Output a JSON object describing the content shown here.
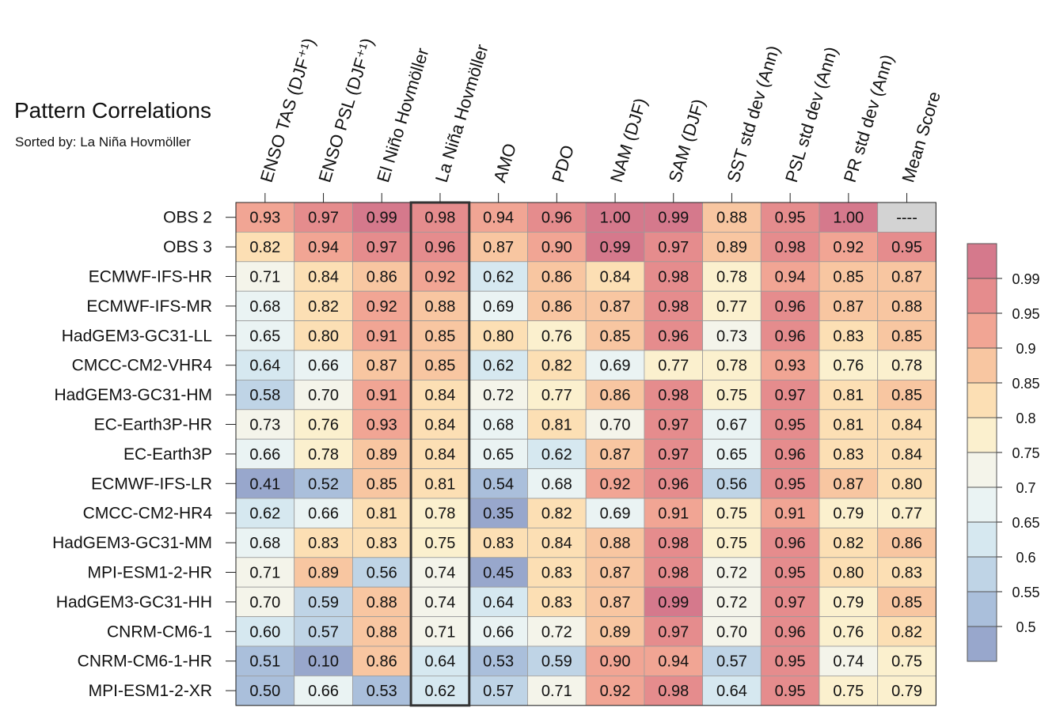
{
  "chart_data": {
    "type": "heatmap",
    "title": "Pattern Correlations",
    "subtitle": "Sorted by: La Niña Hovmöller",
    "columns": [
      "ENSO TAS (DJF⁺¹)",
      "ENSO PSL (DJF⁺¹)",
      "El Niño Hovmöller",
      "La Niña Hovmöller",
      "AMO",
      "PDO",
      "NAM (DJF)",
      "SAM (DJF)",
      "SST std dev (Ann)",
      "PSL std dev (Ann)",
      "PR std dev (Ann)",
      "Mean Score"
    ],
    "highlighted_column": "La Niña Hovmöller",
    "rows": [
      {
        "name": "OBS 2",
        "values": [
          0.93,
          0.97,
          0.99,
          0.98,
          0.94,
          0.96,
          1.0,
          0.99,
          0.88,
          0.95,
          1.0,
          null
        ]
      },
      {
        "name": "OBS 3",
        "values": [
          0.82,
          0.94,
          0.97,
          0.96,
          0.87,
          0.9,
          0.99,
          0.97,
          0.89,
          0.98,
          0.92,
          0.95
        ]
      },
      {
        "name": "ECMWF-IFS-HR",
        "values": [
          0.71,
          0.84,
          0.86,
          0.92,
          0.62,
          0.86,
          0.84,
          0.98,
          0.78,
          0.94,
          0.85,
          0.87
        ]
      },
      {
        "name": "ECMWF-IFS-MR",
        "values": [
          0.68,
          0.82,
          0.92,
          0.88,
          0.69,
          0.86,
          0.87,
          0.98,
          0.77,
          0.96,
          0.87,
          0.88
        ]
      },
      {
        "name": "HadGEM3-GC31-LL",
        "values": [
          0.65,
          0.8,
          0.91,
          0.85,
          0.8,
          0.76,
          0.85,
          0.96,
          0.73,
          0.96,
          0.83,
          0.85
        ]
      },
      {
        "name": "CMCC-CM2-VHR4",
        "values": [
          0.64,
          0.66,
          0.87,
          0.85,
          0.62,
          0.82,
          0.69,
          0.77,
          0.78,
          0.93,
          0.76,
          0.78
        ]
      },
      {
        "name": "HadGEM3-GC31-HM",
        "values": [
          0.58,
          0.7,
          0.91,
          0.84,
          0.72,
          0.77,
          0.86,
          0.98,
          0.75,
          0.97,
          0.81,
          0.85
        ]
      },
      {
        "name": "EC-Earth3P-HR",
        "values": [
          0.73,
          0.76,
          0.93,
          0.84,
          0.68,
          0.81,
          0.7,
          0.97,
          0.67,
          0.95,
          0.81,
          0.84
        ]
      },
      {
        "name": "EC-Earth3P",
        "values": [
          0.66,
          0.78,
          0.89,
          0.84,
          0.65,
          0.62,
          0.87,
          0.97,
          0.65,
          0.96,
          0.83,
          0.84
        ]
      },
      {
        "name": "ECMWF-IFS-LR",
        "values": [
          0.41,
          0.52,
          0.85,
          0.81,
          0.54,
          0.68,
          0.92,
          0.96,
          0.56,
          0.95,
          0.87,
          0.8
        ]
      },
      {
        "name": "CMCC-CM2-HR4",
        "values": [
          0.62,
          0.66,
          0.81,
          0.78,
          0.35,
          0.82,
          0.69,
          0.91,
          0.75,
          0.91,
          0.79,
          0.77
        ]
      },
      {
        "name": "HadGEM3-GC31-MM",
        "values": [
          0.68,
          0.83,
          0.83,
          0.75,
          0.83,
          0.84,
          0.88,
          0.98,
          0.75,
          0.96,
          0.82,
          0.86
        ]
      },
      {
        "name": "MPI-ESM1-2-HR",
        "values": [
          0.71,
          0.89,
          0.56,
          0.74,
          0.45,
          0.83,
          0.87,
          0.98,
          0.72,
          0.95,
          0.8,
          0.83
        ]
      },
      {
        "name": "HadGEM3-GC31-HH",
        "values": [
          0.7,
          0.59,
          0.88,
          0.74,
          0.64,
          0.83,
          0.87,
          0.99,
          0.72,
          0.97,
          0.79,
          0.85
        ]
      },
      {
        "name": "CNRM-CM6-1",
        "values": [
          0.6,
          0.57,
          0.88,
          0.71,
          0.66,
          0.72,
          0.89,
          0.97,
          0.7,
          0.96,
          0.76,
          0.82
        ]
      },
      {
        "name": "CNRM-CM6-1-HR",
        "values": [
          0.51,
          0.1,
          0.86,
          0.64,
          0.53,
          0.59,
          0.9,
          0.94,
          0.57,
          0.95,
          0.74,
          0.75
        ]
      },
      {
        "name": "MPI-ESM1-2-XR",
        "values": [
          0.5,
          0.66,
          0.53,
          0.62,
          0.57,
          0.71,
          0.92,
          0.98,
          0.64,
          0.95,
          0.75,
          0.79
        ]
      }
    ],
    "missing_label": "----",
    "missing_color": "#d3d3d3",
    "colorbar": {
      "bounds": [
        0.5,
        0.55,
        0.6,
        0.65,
        0.7,
        0.75,
        0.8,
        0.85,
        0.9,
        0.95,
        0.99
      ],
      "tick_labels": [
        "0.5",
        "0.55",
        "0.6",
        "0.65",
        "0.7",
        "0.75",
        "0.8",
        "0.85",
        "0.9",
        "0.95",
        "0.99"
      ],
      "colors": [
        "#98a7cc",
        "#aabfdb",
        "#bfd4e6",
        "#d6e8f0",
        "#eaf3f3",
        "#f4f4ea",
        "#fbf0ce",
        "#fcdfb4",
        "#f8c6a1",
        "#f1a594",
        "#e58c8d",
        "#d5798c"
      ]
    }
  }
}
